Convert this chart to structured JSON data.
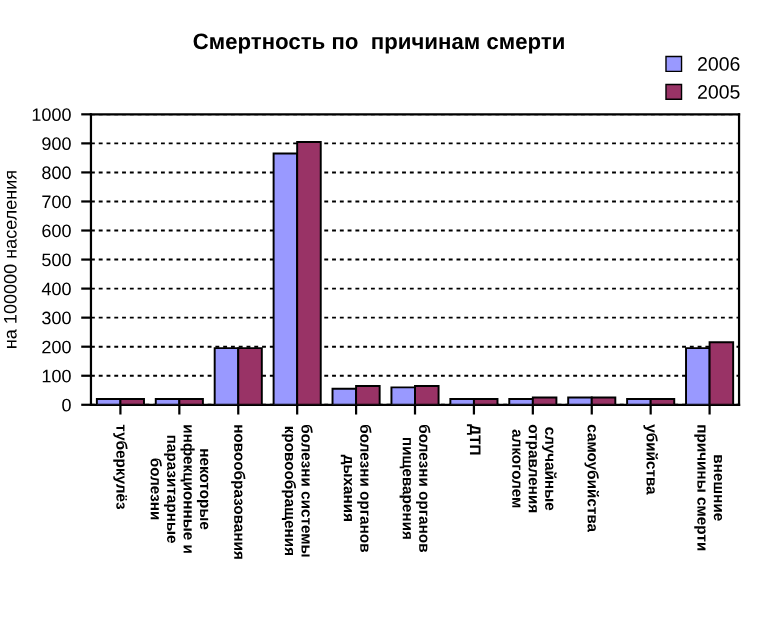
{
  "chart_data": {
    "type": "bar",
    "title": "Смертность по  причинам смерти",
    "ylabel": "на 100000 населения",
    "categories": [
      "туберкулёз",
      "некоторые\nинфекционные и\nпаразитарные\nболезни",
      "новообразования",
      "болезни системы\nкровообращения",
      "болезни органов\nдыхания",
      "болезни органов\nпищеварения",
      "ДТП",
      "случайные\nотравления\nалкоголем",
      "самоубийства",
      "убийства",
      "внешние\nпричины смерти"
    ],
    "series": [
      {
        "name": "2006",
        "color": "#9999ff",
        "values": [
          20,
          20,
          195,
          865,
          55,
          60,
          20,
          20,
          25,
          20,
          195
        ]
      },
      {
        "name": "2005",
        "color": "#993366",
        "values": [
          20,
          20,
          195,
          905,
          65,
          65,
          20,
          25,
          25,
          20,
          215
        ]
      }
    ],
    "ylim": [
      0,
      1000
    ],
    "yticks": [
      0,
      100,
      200,
      300,
      400,
      500,
      600,
      700,
      800,
      900,
      1000
    ],
    "grid": "y",
    "legend": "top right"
  }
}
